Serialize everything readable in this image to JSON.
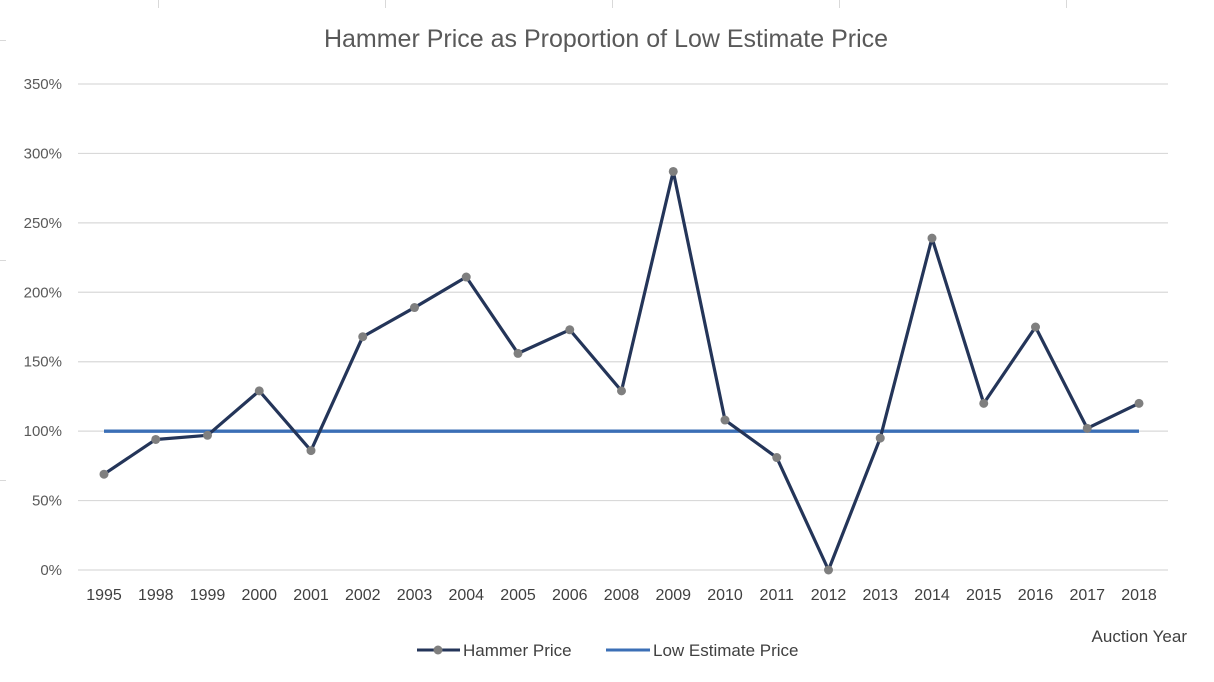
{
  "chart_data": {
    "type": "line",
    "title": "Hammer Price as Proportion of Low Estimate Price",
    "xlabel": "Auction Year",
    "ylabel": "",
    "categories": [
      "1995",
      "1998",
      "1999",
      "2000",
      "2001",
      "2002",
      "2003",
      "2004",
      "2005",
      "2006",
      "2008",
      "2009",
      "2010",
      "2011",
      "2012",
      "2013",
      "2014",
      "2015",
      "2016",
      "2017",
      "2018"
    ],
    "series": [
      {
        "name": "Hammer Price",
        "values": [
          69,
          94,
          97,
          129,
          86,
          168,
          189,
          211,
          156,
          173,
          129,
          287,
          108,
          81,
          0,
          95,
          239,
          120,
          175,
          102,
          120
        ],
        "color": "#243559",
        "marker_color": "#7f7f7f",
        "markers": true
      },
      {
        "name": "Low Estimate Price",
        "values": [
          100,
          100,
          100,
          100,
          100,
          100,
          100,
          100,
          100,
          100,
          100,
          100,
          100,
          100,
          100,
          100,
          100,
          100,
          100,
          100,
          100
        ],
        "color": "#3b6fb6",
        "markers": false
      }
    ],
    "ylim": [
      0,
      350
    ],
    "yticks": [
      "0%",
      "50%",
      "100%",
      "150%",
      "200%",
      "250%",
      "300%",
      "350%"
    ],
    "grid": true,
    "legend_position": "bottom"
  }
}
